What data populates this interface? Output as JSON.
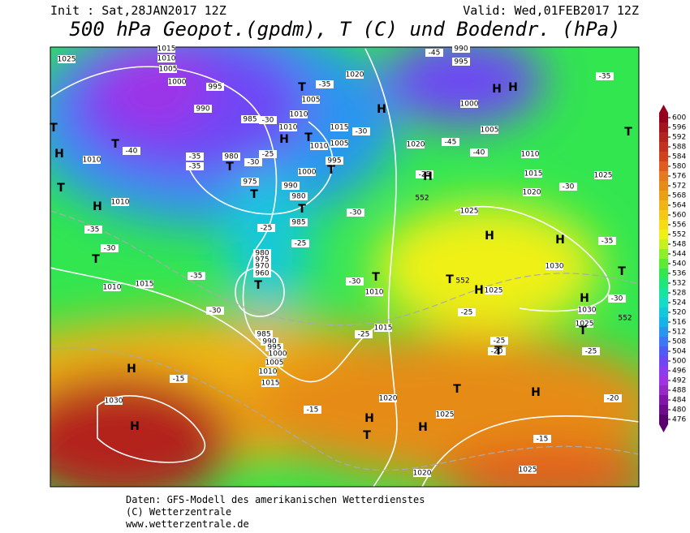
{
  "header": {
    "init": "Init : Sat,28JAN2017 12Z",
    "valid": "Valid: Wed,01FEB2017 12Z",
    "title": "500 hPa Geopot.(gpdm), T (C) und Bodendr. (hPa)"
  },
  "footer": {
    "line1": "Daten: GFS-Modell des amerikanischen Wetterdienstes",
    "line2": "(C) Wetterzentrale",
    "line3": "www.wetterzentrale.de"
  },
  "colorbar": {
    "ticks": [
      476,
      480,
      484,
      488,
      492,
      496,
      500,
      504,
      508,
      512,
      516,
      520,
      524,
      528,
      532,
      536,
      540,
      544,
      548,
      552,
      556,
      560,
      564,
      568,
      572,
      576,
      580,
      584,
      588,
      592,
      596,
      600
    ],
    "colors": [
      "#5a006e",
      "#6e0a8c",
      "#8214aa",
      "#9628c8",
      "#a032e6",
      "#8c3cf0",
      "#6e46f5",
      "#505af5",
      "#3c78f5",
      "#2896f0",
      "#14b4eb",
      "#14c8dc",
      "#14dcc8",
      "#14e6a0",
      "#1ee678",
      "#32e650",
      "#5aeb32",
      "#8cf028",
      "#c8f01e",
      "#f0f014",
      "#f5dc14",
      "#f5c814",
      "#f0b414",
      "#eba014",
      "#e68c14",
      "#e6781e",
      "#e15a1e",
      "#d2411e",
      "#c3321e",
      "#b4231e",
      "#a5141e",
      "#96001e"
    ]
  },
  "isobar_labels": [
    1025,
    1015,
    1010,
    1005,
    1000,
    995,
    990,
    985,
    980,
    975,
    1010,
    1010,
    1005,
    1000,
    990,
    980,
    985,
    1015,
    1005,
    1010,
    995,
    1020,
    1020,
    1025,
    1000,
    1005,
    1010,
    1015,
    1020,
    1025,
    990,
    995,
    1010,
    1010,
    1010,
    1015,
    1030,
    1030,
    1025,
    1025,
    1010,
    1015,
    985,
    990,
    995,
    1000,
    1005,
    1010,
    1015,
    1020,
    1025,
    1020,
    1025,
    1030,
    980,
    975,
    970,
    960
  ],
  "temperature_labels": [
    -40,
    -35,
    -35,
    -30,
    -30,
    -25,
    -35,
    -30,
    -30,
    -25,
    -25,
    -35,
    -30,
    -30,
    -25,
    -25,
    -25,
    -25,
    -20,
    -25,
    -20,
    -15,
    -15,
    -15,
    -30,
    -35,
    -35,
    -45,
    -40,
    -45,
    -30,
    -30,
    -35
  ],
  "contour_labels": [
    552,
    552,
    552
  ],
  "highs": [
    "H",
    "H",
    "H",
    "H",
    "H",
    "H",
    "H",
    "H",
    "H",
    "H",
    "H",
    "H",
    "H",
    "H",
    "H",
    "H"
  ],
  "lows": [
    "T",
    "T",
    "T",
    "T",
    "T",
    "T",
    "T",
    "T",
    "T",
    "T",
    "T",
    "T",
    "T",
    "T",
    "T",
    "T",
    "T",
    "T",
    "T"
  ]
}
